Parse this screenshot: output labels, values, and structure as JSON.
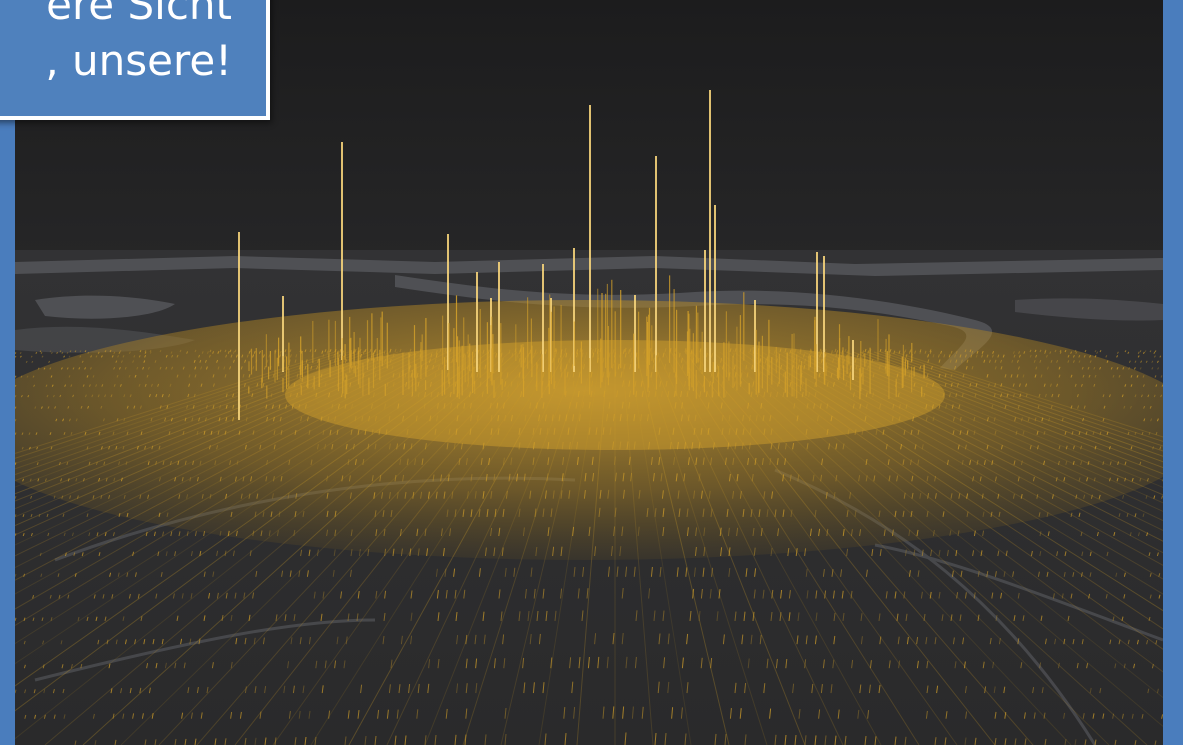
{
  "callout": {
    "line1": "ere Sicht",
    "line2": ", unsere!"
  },
  "map": {
    "style": "3d-density-spikes",
    "colors": {
      "frame": "#4a7dbd",
      "sky": "#1f1f20",
      "terrain": "#3a3a3c",
      "water": "#5c5d60",
      "spike": "#d4a12a",
      "spike_highlight": "#f5d37a",
      "callout_fill": "#4f81bd",
      "callout_border": "#ffffff",
      "callout_text": "#ffffff"
    }
  }
}
